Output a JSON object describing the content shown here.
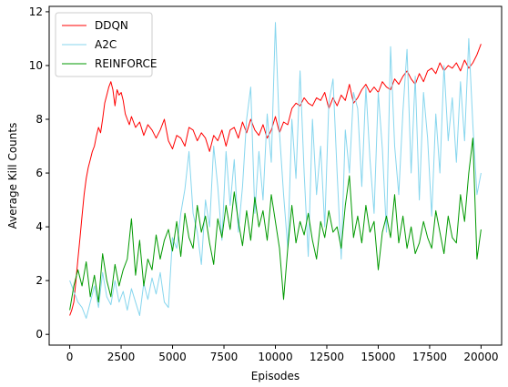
{
  "chart_data": {
    "type": "line",
    "title": "",
    "xlabel": "Episodes",
    "ylabel": "Average Kill Counts",
    "xlim": [
      -1000,
      21000
    ],
    "ylim": [
      -0.4,
      12.2
    ],
    "xticks": [
      0,
      2500,
      5000,
      7500,
      10000,
      12500,
      15000,
      17500,
      20000
    ],
    "yticks": [
      0,
      2,
      4,
      6,
      8,
      10,
      12
    ],
    "grid": false,
    "legend_position": "top-left",
    "series": [
      {
        "name": "DDQN",
        "color": "#ff0000",
        "points": [
          [
            0,
            0.7
          ],
          [
            100,
            0.9
          ],
          [
            200,
            1.2
          ],
          [
            300,
            2.0
          ],
          [
            400,
            2.8
          ],
          [
            500,
            3.6
          ],
          [
            600,
            4.4
          ],
          [
            700,
            5.2
          ],
          [
            800,
            5.8
          ],
          [
            900,
            6.2
          ],
          [
            1000,
            6.5
          ],
          [
            1100,
            6.8
          ],
          [
            1200,
            7.0
          ],
          [
            1300,
            7.4
          ],
          [
            1400,
            7.7
          ],
          [
            1500,
            7.5
          ],
          [
            1600,
            8.0
          ],
          [
            1700,
            8.6
          ],
          [
            1800,
            8.9
          ],
          [
            1900,
            9.2
          ],
          [
            2000,
            9.4
          ],
          [
            2100,
            9.1
          ],
          [
            2200,
            8.5
          ],
          [
            2300,
            9.1
          ],
          [
            2400,
            8.9
          ],
          [
            2500,
            9.0
          ],
          [
            2600,
            8.7
          ],
          [
            2700,
            8.2
          ],
          [
            2800,
            8.0
          ],
          [
            2900,
            7.8
          ],
          [
            3000,
            8.1
          ],
          [
            3200,
            7.7
          ],
          [
            3400,
            7.9
          ],
          [
            3600,
            7.4
          ],
          [
            3800,
            7.8
          ],
          [
            4000,
            7.6
          ],
          [
            4200,
            7.3
          ],
          [
            4400,
            7.6
          ],
          [
            4600,
            8.0
          ],
          [
            4800,
            7.2
          ],
          [
            5000,
            6.9
          ],
          [
            5200,
            7.4
          ],
          [
            5400,
            7.3
          ],
          [
            5600,
            7.0
          ],
          [
            5800,
            7.7
          ],
          [
            6000,
            7.6
          ],
          [
            6200,
            7.2
          ],
          [
            6400,
            7.5
          ],
          [
            6600,
            7.3
          ],
          [
            6800,
            6.8
          ],
          [
            7000,
            7.4
          ],
          [
            7200,
            7.2
          ],
          [
            7400,
            7.6
          ],
          [
            7600,
            7.0
          ],
          [
            7800,
            7.6
          ],
          [
            8000,
            7.7
          ],
          [
            8200,
            7.3
          ],
          [
            8400,
            7.9
          ],
          [
            8600,
            7.5
          ],
          [
            8800,
            8.0
          ],
          [
            9000,
            7.6
          ],
          [
            9200,
            7.4
          ],
          [
            9400,
            7.8
          ],
          [
            9600,
            7.3
          ],
          [
            9800,
            7.6
          ],
          [
            10000,
            8.1
          ],
          [
            10200,
            7.5
          ],
          [
            10400,
            7.9
          ],
          [
            10600,
            7.8
          ],
          [
            10800,
            8.4
          ],
          [
            11000,
            8.6
          ],
          [
            11200,
            8.5
          ],
          [
            11400,
            8.8
          ],
          [
            11600,
            8.6
          ],
          [
            11800,
            8.5
          ],
          [
            12000,
            8.8
          ],
          [
            12200,
            8.7
          ],
          [
            12400,
            9.0
          ],
          [
            12600,
            8.4
          ],
          [
            12800,
            8.8
          ],
          [
            13000,
            8.5
          ],
          [
            13200,
            8.9
          ],
          [
            13400,
            8.7
          ],
          [
            13600,
            9.3
          ],
          [
            13800,
            8.6
          ],
          [
            14000,
            8.8
          ],
          [
            14200,
            9.1
          ],
          [
            14400,
            9.3
          ],
          [
            14600,
            9.0
          ],
          [
            14800,
            9.2
          ],
          [
            15000,
            9.0
          ],
          [
            15200,
            9.4
          ],
          [
            15400,
            9.2
          ],
          [
            15600,
            9.1
          ],
          [
            15800,
            9.5
          ],
          [
            16000,
            9.3
          ],
          [
            16200,
            9.6
          ],
          [
            16400,
            9.8
          ],
          [
            16600,
            9.5
          ],
          [
            16800,
            9.3
          ],
          [
            17000,
            9.7
          ],
          [
            17200,
            9.4
          ],
          [
            17400,
            9.8
          ],
          [
            17600,
            9.9
          ],
          [
            17800,
            9.7
          ],
          [
            18000,
            10.1
          ],
          [
            18200,
            9.8
          ],
          [
            18400,
            10.0
          ],
          [
            18600,
            9.9
          ],
          [
            18800,
            10.1
          ],
          [
            19000,
            9.8
          ],
          [
            19200,
            10.2
          ],
          [
            19400,
            9.9
          ],
          [
            19600,
            10.1
          ],
          [
            19800,
            10.4
          ],
          [
            20000,
            10.8
          ]
        ]
      },
      {
        "name": "A2C",
        "color": "#87d6ee",
        "points": [
          [
            0,
            2.0
          ],
          [
            200,
            1.6
          ],
          [
            400,
            1.2
          ],
          [
            600,
            1.0
          ],
          [
            800,
            0.6
          ],
          [
            1000,
            1.2
          ],
          [
            1200,
            1.8
          ],
          [
            1400,
            1.0
          ],
          [
            1600,
            2.3
          ],
          [
            1800,
            1.4
          ],
          [
            2000,
            1.1
          ],
          [
            2200,
            2.0
          ],
          [
            2400,
            1.2
          ],
          [
            2600,
            1.6
          ],
          [
            2800,
            0.9
          ],
          [
            3000,
            1.7
          ],
          [
            3200,
            1.2
          ],
          [
            3400,
            0.7
          ],
          [
            3600,
            1.9
          ],
          [
            3800,
            1.3
          ],
          [
            4000,
            2.1
          ],
          [
            4200,
            1.5
          ],
          [
            4400,
            2.3
          ],
          [
            4600,
            1.2
          ],
          [
            4800,
            1.0
          ],
          [
            5000,
            3.6
          ],
          [
            5200,
            3.2
          ],
          [
            5400,
            4.5
          ],
          [
            5600,
            5.4
          ],
          [
            5800,
            6.8
          ],
          [
            6000,
            4.5
          ],
          [
            6200,
            3.8
          ],
          [
            6400,
            2.6
          ],
          [
            6600,
            5.0
          ],
          [
            6800,
            4.0
          ],
          [
            7000,
            7.0
          ],
          [
            7200,
            5.5
          ],
          [
            7400,
            3.5
          ],
          [
            7600,
            6.8
          ],
          [
            7800,
            4.8
          ],
          [
            8000,
            6.5
          ],
          [
            8200,
            3.8
          ],
          [
            8400,
            5.5
          ],
          [
            8600,
            8.0
          ],
          [
            8800,
            9.2
          ],
          [
            9000,
            4.5
          ],
          [
            9200,
            6.8
          ],
          [
            9400,
            5.0
          ],
          [
            9600,
            8.2
          ],
          [
            9800,
            6.4
          ],
          [
            10000,
            11.6
          ],
          [
            10200,
            7.5
          ],
          [
            10400,
            5.2
          ],
          [
            10600,
            3.2
          ],
          [
            10800,
            8.0
          ],
          [
            11000,
            5.8
          ],
          [
            11200,
            9.8
          ],
          [
            11400,
            6.0
          ],
          [
            11600,
            2.9
          ],
          [
            11800,
            8.0
          ],
          [
            12000,
            5.2
          ],
          [
            12200,
            7.0
          ],
          [
            12400,
            4.0
          ],
          [
            12600,
            8.6
          ],
          [
            12800,
            9.5
          ],
          [
            13000,
            6.0
          ],
          [
            13200,
            2.8
          ],
          [
            13400,
            7.6
          ],
          [
            13600,
            6.0
          ],
          [
            13800,
            9.0
          ],
          [
            14000,
            8.4
          ],
          [
            14200,
            5.5
          ],
          [
            14400,
            9.2
          ],
          [
            14600,
            6.5
          ],
          [
            14800,
            4.5
          ],
          [
            15000,
            9.0
          ],
          [
            15200,
            6.9
          ],
          [
            15400,
            3.8
          ],
          [
            15600,
            10.7
          ],
          [
            15800,
            7.0
          ],
          [
            16000,
            5.2
          ],
          [
            16200,
            8.3
          ],
          [
            16400,
            10.6
          ],
          [
            16600,
            6.0
          ],
          [
            16800,
            9.6
          ],
          [
            17000,
            5.0
          ],
          [
            17200,
            9.0
          ],
          [
            17400,
            7.3
          ],
          [
            17600,
            4.4
          ],
          [
            17800,
            8.2
          ],
          [
            18000,
            6.0
          ],
          [
            18200,
            10.0
          ],
          [
            18400,
            7.2
          ],
          [
            18600,
            8.8
          ],
          [
            18800,
            6.4
          ],
          [
            19000,
            9.4
          ],
          [
            19200,
            7.2
          ],
          [
            19400,
            11.0
          ],
          [
            19600,
            7.8
          ],
          [
            19800,
            5.2
          ],
          [
            20000,
            6.0
          ]
        ]
      },
      {
        "name": "REINFORCE",
        "color": "#009900",
        "points": [
          [
            0,
            0.9
          ],
          [
            200,
            1.8
          ],
          [
            400,
            2.4
          ],
          [
            600,
            1.8
          ],
          [
            800,
            2.7
          ],
          [
            1000,
            1.4
          ],
          [
            1200,
            2.2
          ],
          [
            1400,
            1.2
          ],
          [
            1600,
            3.0
          ],
          [
            1800,
            2.0
          ],
          [
            2000,
            1.4
          ],
          [
            2200,
            2.6
          ],
          [
            2400,
            1.8
          ],
          [
            2600,
            2.4
          ],
          [
            2800,
            2.8
          ],
          [
            3000,
            4.3
          ],
          [
            3200,
            2.2
          ],
          [
            3400,
            3.5
          ],
          [
            3600,
            1.8
          ],
          [
            3800,
            2.8
          ],
          [
            4000,
            2.4
          ],
          [
            4200,
            3.7
          ],
          [
            4400,
            2.8
          ],
          [
            4600,
            3.5
          ],
          [
            4800,
            3.9
          ],
          [
            5000,
            3.1
          ],
          [
            5200,
            4.2
          ],
          [
            5400,
            2.9
          ],
          [
            5600,
            4.5
          ],
          [
            5800,
            3.6
          ],
          [
            6000,
            3.2
          ],
          [
            6200,
            4.8
          ],
          [
            6400,
            3.8
          ],
          [
            6600,
            4.4
          ],
          [
            6800,
            3.4
          ],
          [
            7000,
            2.6
          ],
          [
            7200,
            4.3
          ],
          [
            7400,
            3.6
          ],
          [
            7600,
            4.8
          ],
          [
            7800,
            3.9
          ],
          [
            8000,
            5.3
          ],
          [
            8200,
            4.2
          ],
          [
            8400,
            3.3
          ],
          [
            8600,
            4.6
          ],
          [
            8800,
            3.5
          ],
          [
            9000,
            5.1
          ],
          [
            9200,
            4.0
          ],
          [
            9400,
            4.6
          ],
          [
            9600,
            3.5
          ],
          [
            9800,
            5.2
          ],
          [
            10000,
            4.2
          ],
          [
            10200,
            3.2
          ],
          [
            10400,
            1.3
          ],
          [
            10600,
            3.2
          ],
          [
            10800,
            4.8
          ],
          [
            11000,
            3.4
          ],
          [
            11200,
            4.2
          ],
          [
            11400,
            3.7
          ],
          [
            11600,
            4.5
          ],
          [
            11800,
            3.5
          ],
          [
            12000,
            2.8
          ],
          [
            12200,
            4.2
          ],
          [
            12400,
            3.6
          ],
          [
            12600,
            4.6
          ],
          [
            12800,
            3.8
          ],
          [
            13000,
            4.0
          ],
          [
            13200,
            3.2
          ],
          [
            13400,
            4.8
          ],
          [
            13600,
            5.9
          ],
          [
            13800,
            3.6
          ],
          [
            14000,
            4.4
          ],
          [
            14200,
            3.4
          ],
          [
            14400,
            4.8
          ],
          [
            14600,
            3.8
          ],
          [
            14800,
            4.2
          ],
          [
            15000,
            2.4
          ],
          [
            15200,
            3.8
          ],
          [
            15400,
            4.4
          ],
          [
            15600,
            3.6
          ],
          [
            15800,
            5.2
          ],
          [
            16000,
            3.4
          ],
          [
            16200,
            4.4
          ],
          [
            16400,
            3.2
          ],
          [
            16600,
            4.0
          ],
          [
            16800,
            3.0
          ],
          [
            17000,
            3.4
          ],
          [
            17200,
            4.2
          ],
          [
            17400,
            3.6
          ],
          [
            17600,
            3.2
          ],
          [
            17800,
            4.6
          ],
          [
            18000,
            3.8
          ],
          [
            18200,
            3.0
          ],
          [
            18400,
            4.4
          ],
          [
            18600,
            3.6
          ],
          [
            18800,
            3.4
          ],
          [
            19000,
            5.2
          ],
          [
            19200,
            4.2
          ],
          [
            19400,
            6.0
          ],
          [
            19600,
            7.3
          ],
          [
            19800,
            2.8
          ],
          [
            20000,
            3.9
          ]
        ]
      }
    ]
  }
}
